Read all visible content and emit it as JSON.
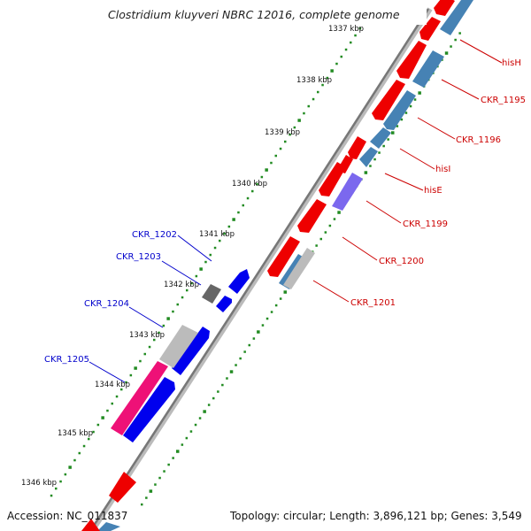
{
  "title": "Clostridium kluyveri NBRC 12016, complete genome",
  "footer": {
    "accession": "Accession: NC_011837",
    "summary": "Topology: circular; Length: 3,896,121 bp; Genes: 3,549"
  },
  "ticks": [
    {
      "label": "1337 kbp",
      "kbp": 1337
    },
    {
      "label": "1338 kbp",
      "kbp": 1338
    },
    {
      "label": "1339 kbp",
      "kbp": 1339
    },
    {
      "label": "1340 kbp",
      "kbp": 1340
    },
    {
      "label": "1341 kbp",
      "kbp": 1341
    },
    {
      "label": "1342 kbp",
      "kbp": 1342
    },
    {
      "label": "1343 kbp",
      "kbp": 1343
    },
    {
      "label": "1344 kbp",
      "kbp": 1344
    },
    {
      "label": "1345 kbp",
      "kbp": 1345
    },
    {
      "label": "1346 kbp",
      "kbp": 1346
    }
  ],
  "labels_right": [
    {
      "text": "hisH",
      "color": "#cc0000"
    },
    {
      "text": "CKR_1195",
      "color": "#cc0000"
    },
    {
      "text": "CKR_1196",
      "color": "#cc0000"
    },
    {
      "text": "hisI",
      "color": "#cc0000"
    },
    {
      "text": "hisE",
      "color": "#cc0000"
    },
    {
      "text": "CKR_1199",
      "color": "#cc0000"
    },
    {
      "text": "CKR_1200",
      "color": "#cc0000"
    },
    {
      "text": "CKR_1201",
      "color": "#cc0000"
    }
  ],
  "labels_left": [
    {
      "text": "CKR_1202",
      "color": "#0000cc"
    },
    {
      "text": "CKR_1203",
      "color": "#0000cc"
    },
    {
      "text": "CKR_1204",
      "color": "#0000cc"
    },
    {
      "text": "CKR_1205",
      "color": "#0000cc"
    }
  ],
  "colors": {
    "cds_forward": "#ee0000",
    "cds_reverse": "#0000ee",
    "cog_blue": "#4682b4",
    "cog_purple": "#7b68ee",
    "cog_gray": "#bbbbbb",
    "cog_dark": "#666666",
    "cog_pink": "#ee1177",
    "backbone": "#777777",
    "gc_dots": "#228b22"
  }
}
